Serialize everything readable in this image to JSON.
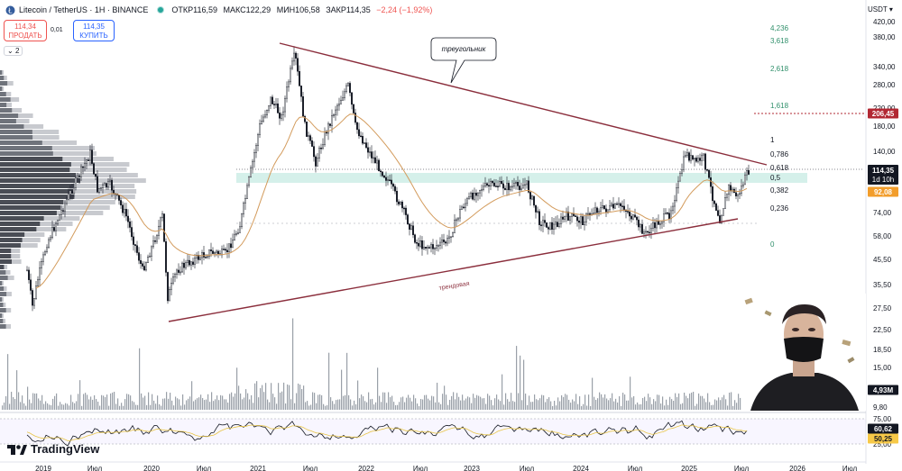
{
  "header": {
    "symbol": "Litecoin / TetherUS · 1H · BINANCE",
    "open": "ОТКР116,59",
    "high": "МАКС122,29",
    "low": "МИН106,58",
    "close": "ЗАКР114,35",
    "change": "−2,24 (−1,92%)"
  },
  "order": {
    "sell_price": "114,34",
    "sell_label": "ПРОДАТЬ",
    "spread": "0,01",
    "buy_price": "114,35",
    "buy_label": "КУПИТЬ"
  },
  "collapse_label": "2",
  "currency": "USDT",
  "price_axis": [
    "420,00",
    "380,00",
    "340,00",
    "280,00",
    "220,00",
    "180,00",
    "140,00",
    "74,00",
    "58,00",
    "45,50",
    "35,50",
    "27,50",
    "22,50",
    "18,50",
    "15,00",
    "9,80"
  ],
  "price_badges": {
    "last": "114,35",
    "countdown": "1d 10h",
    "fib_level": "206,45",
    "ma": "92,08",
    "volume": "4,93M",
    "rsi1": "60,62",
    "rsi2": "50,25"
  },
  "rsi_axis": [
    "75,00",
    "25,00"
  ],
  "fib_levels": [
    "4,236",
    "3,618",
    "2,618",
    "1,618",
    "1",
    "0,786",
    "0,618",
    "0,5",
    "0,382",
    "0,236",
    "0"
  ],
  "time_axis": [
    "2019",
    "Июл",
    "2020",
    "Июл",
    "2021",
    "Июл",
    "2022",
    "Июл",
    "2023",
    "Июл",
    "2024",
    "Июл",
    "2025",
    "Июл",
    "2026",
    "Июл"
  ],
  "annotations": {
    "triangle": "треугольник",
    "trendline": "трендовая"
  },
  "brand": "TradingView",
  "colors": {
    "up": "#26a69a",
    "down": "#ef5350",
    "candle": "#131722",
    "trend": "#8b2e3c",
    "ma": "#d39b5c",
    "fib_zone": "#d5f0ea",
    "volume": "#9aa0a8"
  }
}
